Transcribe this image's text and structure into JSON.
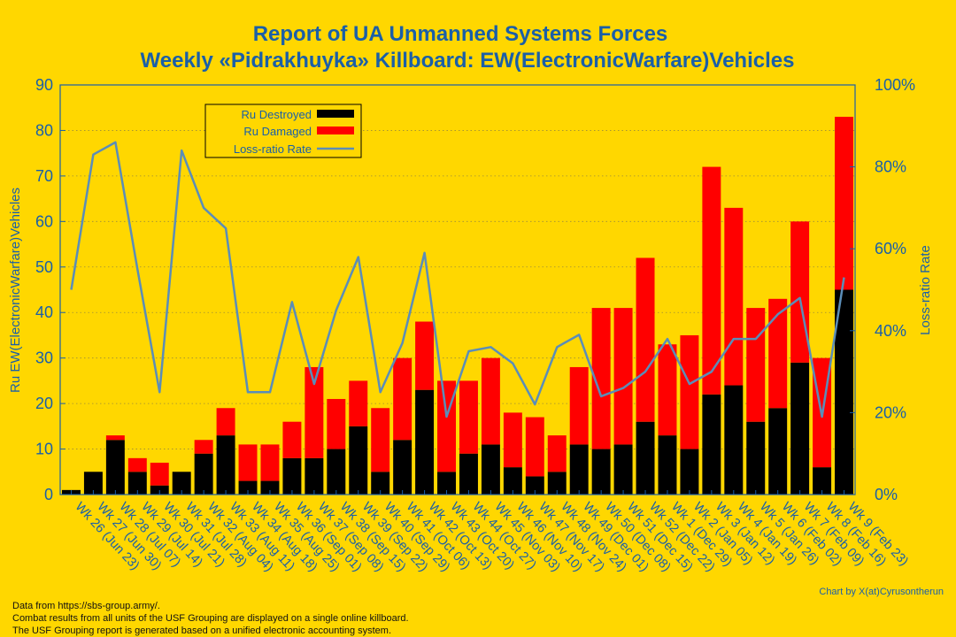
{
  "chart_data": {
    "type": "bar",
    "title_line1": "Report of UA Unmanned Systems Forces",
    "title_line2": "Weekly «Pidrakhuyka» Killboard: EW(ElectronicWarfare)Vehicles",
    "ylabel": "Ru EW(ElectronicWarfare)Vehicles",
    "y2label": "Loss-ratio Rate",
    "ylim": [
      0,
      90
    ],
    "yticks": [
      "0",
      "10",
      "20",
      "30",
      "40",
      "50",
      "60",
      "70",
      "80",
      "90"
    ],
    "y2lim": [
      0,
      100
    ],
    "y2ticks": [
      "0%",
      "20%",
      "40%",
      "60%",
      "80%",
      "100%"
    ],
    "stacked": true,
    "categories": [
      "Wk 26 (Jun 23)",
      "Wk 27 (Jun 30)",
      "Wk 28 (Jul 07)",
      "Wk 29 (Jul 14)",
      "Wk 30 (Jul 21)",
      "Wk 31 (Jul 28)",
      "Wk 32 (Aug 04)",
      "Wk 33 (Aug 11)",
      "Wk 34 (Aug 18)",
      "Wk 35 (Aug 25)",
      "Wk 36 (Sep 01)",
      "Wk 37 (Sep 08)",
      "Wk 38 (Sep 15)",
      "Wk 39 (Sep 22)",
      "Wk 40 (Sep 29)",
      "Wk 41 (Oct 06)",
      "Wk 42 (Oct 13)",
      "Wk 43 (Oct 20)",
      "Wk 44 (Oct 27)",
      "Wk 45 (Nov 03)",
      "Wk 46 (Nov 10)",
      "Wk 47 (Nov 17)",
      "Wk 48 (Nov 24)",
      "Wk 49 (Dec 01)",
      "Wk 50 (Dec 08)",
      "Wk 51 (Dec 15)",
      "Wk 52 (Dec 22)",
      "Wk 1 (Dec 29)",
      "Wk 2 (Jan 05)",
      "Wk 3 (Jan 12)",
      "Wk 4 (Jan 19)",
      "Wk 5 (Jan 26)",
      "Wk 6 (Feb 02)",
      "Wk 7 (Feb 09)",
      "Wk 8 (Feb 16)",
      "Wk 9 (Feb 23)"
    ],
    "series": [
      {
        "name": "Ru Destroyed",
        "color": "#000000",
        "values": [
          1,
          5,
          12,
          5,
          2,
          5,
          9,
          13,
          3,
          3,
          8,
          8,
          10,
          15,
          5,
          12,
          23,
          5,
          9,
          11,
          6,
          4,
          5,
          11,
          10,
          11,
          16,
          13,
          10,
          22,
          24,
          16,
          19,
          29,
          6,
          45
        ]
      },
      {
        "name": "Ru Damaged",
        "color": "#FF0000",
        "values": [
          0,
          0,
          1,
          3,
          5,
          0,
          3,
          6,
          8,
          8,
          8,
          20,
          11,
          10,
          14,
          18,
          15,
          20,
          16,
          19,
          12,
          13,
          8,
          17,
          31,
          30,
          36,
          20,
          25,
          50,
          39,
          25,
          24,
          31,
          24,
          38
        ]
      },
      {
        "name": "Loss-ratio Rate",
        "color": "#5B8DB8",
        "type": "line",
        "axis": "right",
        "values": [
          50,
          83,
          86,
          55,
          25,
          84,
          70,
          65,
          25,
          25,
          47,
          27,
          45,
          58,
          25,
          37,
          59,
          19,
          35,
          36,
          32,
          22,
          36,
          39,
          24,
          26,
          30,
          38,
          27,
          30,
          38,
          38,
          44,
          48,
          19,
          53
        ]
      }
    ],
    "legend": "top-left"
  },
  "credit": "Chart by X(at)Cyrusontherun",
  "footer_lines": [
    "Data from https://sbs-group.army/.",
    "Combat results from all units of the USF Grouping are displayed on a single online killboard.",
    "The USF Grouping report is generated based on a unified electronic accounting system."
  ],
  "colors": {
    "background": "#FFD700",
    "title": "#1A5FA8",
    "destroyed": "#000000",
    "damaged": "#FF0000",
    "ratio_line": "#5B8DB8"
  }
}
